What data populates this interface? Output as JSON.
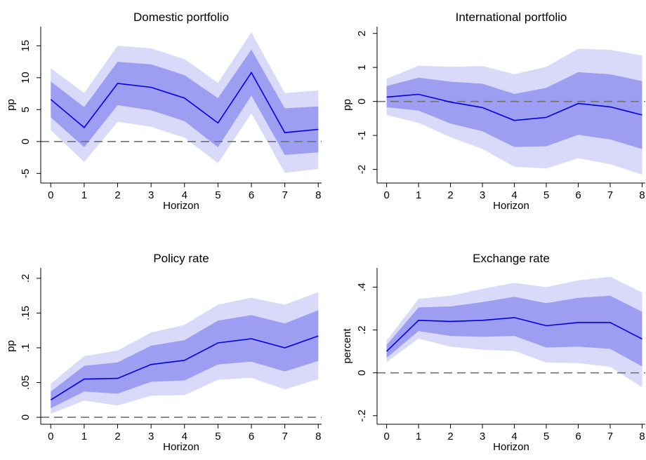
{
  "chart_data": [
    {
      "type": "line",
      "title": "Domestic portfolio",
      "xlabel": "Horizon",
      "ylabel": "pp",
      "x": [
        0,
        1,
        2,
        3,
        4,
        5,
        6,
        7,
        8
      ],
      "xticks": [
        "0",
        "1",
        "2",
        "3",
        "4",
        "5",
        "6",
        "7",
        "8"
      ],
      "xlim": [
        -0.3,
        8.1
      ],
      "ylim": [
        -6.5,
        18
      ],
      "yticks": [
        -5,
        0,
        5,
        10,
        15
      ],
      "ytick_labels": [
        "-5",
        "0",
        "5",
        "10",
        "15"
      ],
      "series": [
        {
          "role": "point_estimate",
          "values": [
            6.6,
            2.2,
            9.1,
            8.5,
            6.8,
            2.9,
            10.8,
            1.4,
            1.9
          ]
        },
        {
          "role": "inner_band_upper",
          "values": [
            9.4,
            5.4,
            12.5,
            12.1,
            10.4,
            6.8,
            14.4,
            5.2,
            5.5
          ]
        },
        {
          "role": "inner_band_lower",
          "values": [
            3.8,
            -0.9,
            5.7,
            4.9,
            3.2,
            -0.9,
            7.2,
            -2.1,
            -1.7
          ]
        },
        {
          "role": "outer_band_upper",
          "values": [
            11.5,
            7.6,
            15.0,
            14.6,
            12.9,
            9.2,
            17.1,
            7.6,
            8.0
          ]
        },
        {
          "role": "outer_band_lower",
          "values": [
            1.8,
            -3.2,
            3.1,
            2.3,
            0.6,
            -3.4,
            4.4,
            -4.9,
            -4.3
          ]
        }
      ],
      "zero_line": 0
    },
    {
      "type": "line",
      "title": "International portfolio",
      "xlabel": "Horizon",
      "ylabel": "pp",
      "x": [
        0,
        1,
        2,
        3,
        4,
        5,
        6,
        7,
        8
      ],
      "xticks": [
        "0",
        "1",
        "2",
        "3",
        "4",
        "5",
        "6",
        "7",
        "8"
      ],
      "xlim": [
        -0.3,
        8.1
      ],
      "ylim": [
        -2.4,
        2.2
      ],
      "yticks": [
        -2,
        -1,
        0,
        1,
        2
      ],
      "ytick_labels": [
        "-2",
        "-1",
        "0",
        "1",
        "2"
      ],
      "series": [
        {
          "role": "point_estimate",
          "values": [
            0.13,
            0.21,
            -0.02,
            -0.18,
            -0.56,
            -0.47,
            -0.06,
            -0.16,
            -0.4
          ]
        },
        {
          "role": "inner_band_upper",
          "values": [
            0.45,
            0.7,
            0.58,
            0.52,
            0.22,
            0.4,
            0.86,
            0.8,
            0.6
          ]
        },
        {
          "role": "inner_band_lower",
          "values": [
            -0.17,
            -0.27,
            -0.65,
            -0.88,
            -1.34,
            -1.32,
            -0.98,
            -1.12,
            -1.4
          ]
        },
        {
          "role": "outer_band_upper",
          "values": [
            0.67,
            1.05,
            1.02,
            1.04,
            0.8,
            1.02,
            1.55,
            1.52,
            1.35
          ]
        },
        {
          "role": "outer_band_lower",
          "values": [
            -0.4,
            -0.63,
            -1.05,
            -1.4,
            -1.92,
            -1.97,
            -1.67,
            -1.85,
            -2.15
          ]
        }
      ],
      "zero_line": 0
    },
    {
      "type": "line",
      "title": "Policy rate",
      "xlabel": "Horizon",
      "ylabel": "pp",
      "x": [
        0,
        1,
        2,
        3,
        4,
        5,
        6,
        7,
        8
      ],
      "xticks": [
        "0",
        "1",
        "2",
        "3",
        "4",
        "5",
        "6",
        "7",
        "8"
      ],
      "xlim": [
        -0.3,
        8.1
      ],
      "ylim": [
        -0.01,
        0.215
      ],
      "yticks": [
        0,
        0.05,
        0.1,
        0.15,
        0.2
      ],
      "ytick_labels": [
        "0",
        ".05",
        ".1",
        ".15",
        ".2"
      ],
      "series": [
        {
          "role": "point_estimate",
          "values": [
            0.025,
            0.055,
            0.056,
            0.076,
            0.082,
            0.107,
            0.113,
            0.1,
            0.117
          ]
        },
        {
          "role": "inner_band_upper",
          "values": [
            0.037,
            0.074,
            0.079,
            0.103,
            0.111,
            0.139,
            0.147,
            0.135,
            0.154
          ]
        },
        {
          "role": "inner_band_lower",
          "values": [
            0.013,
            0.037,
            0.034,
            0.051,
            0.053,
            0.076,
            0.08,
            0.066,
            0.081
          ]
        },
        {
          "role": "outer_band_upper",
          "values": [
            0.048,
            0.088,
            0.096,
            0.122,
            0.133,
            0.162,
            0.172,
            0.162,
            0.18
          ]
        },
        {
          "role": "outer_band_lower",
          "values": [
            0.005,
            0.024,
            0.017,
            0.031,
            0.032,
            0.054,
            0.057,
            0.04,
            0.055
          ]
        }
      ],
      "zero_line": 0
    },
    {
      "type": "line",
      "title": "Exchange rate",
      "xlabel": "Horizon",
      "ylabel": "percent",
      "x": [
        0,
        1,
        2,
        3,
        4,
        5,
        6,
        7,
        8
      ],
      "xticks": [
        "0",
        "1",
        "2",
        "3",
        "4",
        "5",
        "6",
        "7",
        "8"
      ],
      "xlim": [
        -0.3,
        8.1
      ],
      "ylim": [
        -0.24,
        0.49
      ],
      "yticks": [
        -0.2,
        0,
        0.2,
        0.4
      ],
      "ytick_labels": [
        "-.2",
        "0",
        ".2",
        ".4"
      ],
      "series": [
        {
          "role": "point_estimate",
          "values": [
            0.1,
            0.245,
            0.24,
            0.245,
            0.258,
            0.22,
            0.235,
            0.235,
            0.158
          ]
        },
        {
          "role": "inner_band_upper",
          "values": [
            0.13,
            0.305,
            0.31,
            0.33,
            0.355,
            0.325,
            0.35,
            0.36,
            0.285
          ]
        },
        {
          "role": "inner_band_lower",
          "values": [
            0.07,
            0.195,
            0.172,
            0.168,
            0.172,
            0.118,
            0.122,
            0.112,
            0.03
          ]
        },
        {
          "role": "outer_band_upper",
          "values": [
            0.15,
            0.345,
            0.36,
            0.392,
            0.42,
            0.4,
            0.432,
            0.448,
            0.375
          ]
        },
        {
          "role": "outer_band_lower",
          "values": [
            0.05,
            0.16,
            0.122,
            0.108,
            0.102,
            0.048,
            0.045,
            0.028,
            -0.068
          ]
        }
      ],
      "zero_line": 0
    }
  ],
  "colors": {
    "estimate_line": "#0000e6",
    "inner_band": "#9d9df2",
    "outer_band": "#d9d9fa",
    "zero_line": "#707070",
    "axis": "#000000"
  }
}
